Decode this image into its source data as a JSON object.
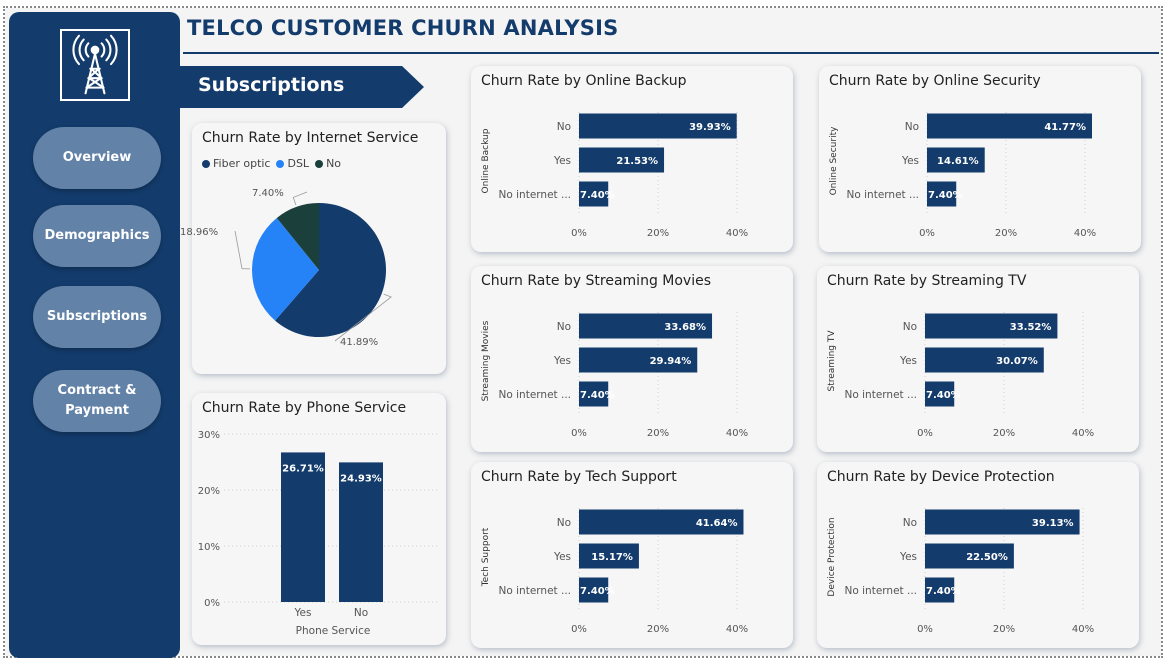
{
  "dashboard": {
    "title": "TELCO CUSTOMER CHURN ANALYSIS",
    "section": "Subscriptions",
    "logo_icon": "radio-tower-icon"
  },
  "nav": {
    "items": [
      {
        "label": "Overview"
      },
      {
        "label": "Demographics"
      },
      {
        "label": "Subscriptions"
      },
      {
        "label": "Contract &\nPayment"
      }
    ]
  },
  "colors": {
    "navy": "#133b6b",
    "button": "#6382a8",
    "fiber": "#133b6b",
    "dsl": "#2683f7",
    "no": "#1b3f3b"
  },
  "chart_data": [
    {
      "id": "internet",
      "type": "pie",
      "title": "Churn Rate by Internet Service",
      "legend": [
        "Fiber optic",
        "DSL",
        "No"
      ],
      "values": [
        41.89,
        18.96,
        7.4
      ],
      "labels": [
        "41.89%",
        "18.96%",
        "7.40%"
      ],
      "colors": [
        "#133b6b",
        "#2683f7",
        "#1b3f3b"
      ]
    },
    {
      "id": "phone",
      "type": "bar",
      "title": "Churn Rate by Phone Service",
      "xlabel": "Phone Service",
      "categories": [
        "Yes",
        "No"
      ],
      "values": [
        26.71,
        24.93
      ],
      "labels": [
        "26.71%",
        "24.93%"
      ],
      "yticks": [
        "0%",
        "10%",
        "20%",
        "30%"
      ],
      "ylim": [
        0,
        30
      ]
    },
    {
      "id": "online_backup",
      "type": "bar",
      "title": "Churn Rate by Online Backup",
      "ylabel": "Online Backup",
      "categories": [
        "No",
        "Yes",
        "No internet ..."
      ],
      "values": [
        39.93,
        21.53,
        7.4
      ],
      "labels": [
        "39.93%",
        "21.53%",
        "7.40%"
      ],
      "xticks": [
        "0%",
        "20%",
        "40%"
      ],
      "xlim": [
        0,
        40
      ]
    },
    {
      "id": "online_security",
      "type": "bar",
      "title": "Churn Rate by Online Security",
      "ylabel": "Online Security",
      "categories": [
        "No",
        "Yes",
        "No internet ..."
      ],
      "values": [
        41.77,
        14.61,
        7.4
      ],
      "labels": [
        "41.77%",
        "14.61%",
        "7.40%"
      ],
      "xticks": [
        "0%",
        "20%",
        "40%"
      ],
      "xlim": [
        0,
        40
      ]
    },
    {
      "id": "streaming_movies",
      "type": "bar",
      "title": "Churn Rate by Streaming Movies",
      "ylabel": "Streaming Movies",
      "categories": [
        "No",
        "Yes",
        "No internet ..."
      ],
      "values": [
        33.68,
        29.94,
        7.4
      ],
      "labels": [
        "33.68%",
        "29.94%",
        "7.40%"
      ],
      "xticks": [
        "0%",
        "20%",
        "40%"
      ],
      "xlim": [
        0,
        40
      ]
    },
    {
      "id": "streaming_tv",
      "type": "bar",
      "title": "Churn Rate by Streaming TV",
      "ylabel": "Streaming TV",
      "categories": [
        "No",
        "Yes",
        "No internet ..."
      ],
      "values": [
        33.52,
        30.07,
        7.4
      ],
      "labels": [
        "33.52%",
        "30.07%",
        "7.40%"
      ],
      "xticks": [
        "0%",
        "20%",
        "40%"
      ],
      "xlim": [
        0,
        40
      ]
    },
    {
      "id": "tech_support",
      "type": "bar",
      "title": "Churn Rate by Tech Support",
      "ylabel": "Tech Support",
      "categories": [
        "No",
        "Yes",
        "No internet ..."
      ],
      "values": [
        41.64,
        15.17,
        7.4
      ],
      "labels": [
        "41.64%",
        "15.17%",
        "7.40%"
      ],
      "xticks": [
        "0%",
        "20%",
        "40%"
      ],
      "xlim": [
        0,
        40
      ]
    },
    {
      "id": "device_protection",
      "type": "bar",
      "title": "Churn Rate by Device Protection",
      "ylabel": "Device Protection",
      "categories": [
        "No",
        "Yes",
        "No internet ..."
      ],
      "values": [
        39.13,
        22.5,
        7.4
      ],
      "labels": [
        "39.13%",
        "22.50%",
        "7.40%"
      ],
      "xticks": [
        "0%",
        "20%",
        "40%"
      ],
      "xlim": [
        0,
        40
      ]
    }
  ]
}
